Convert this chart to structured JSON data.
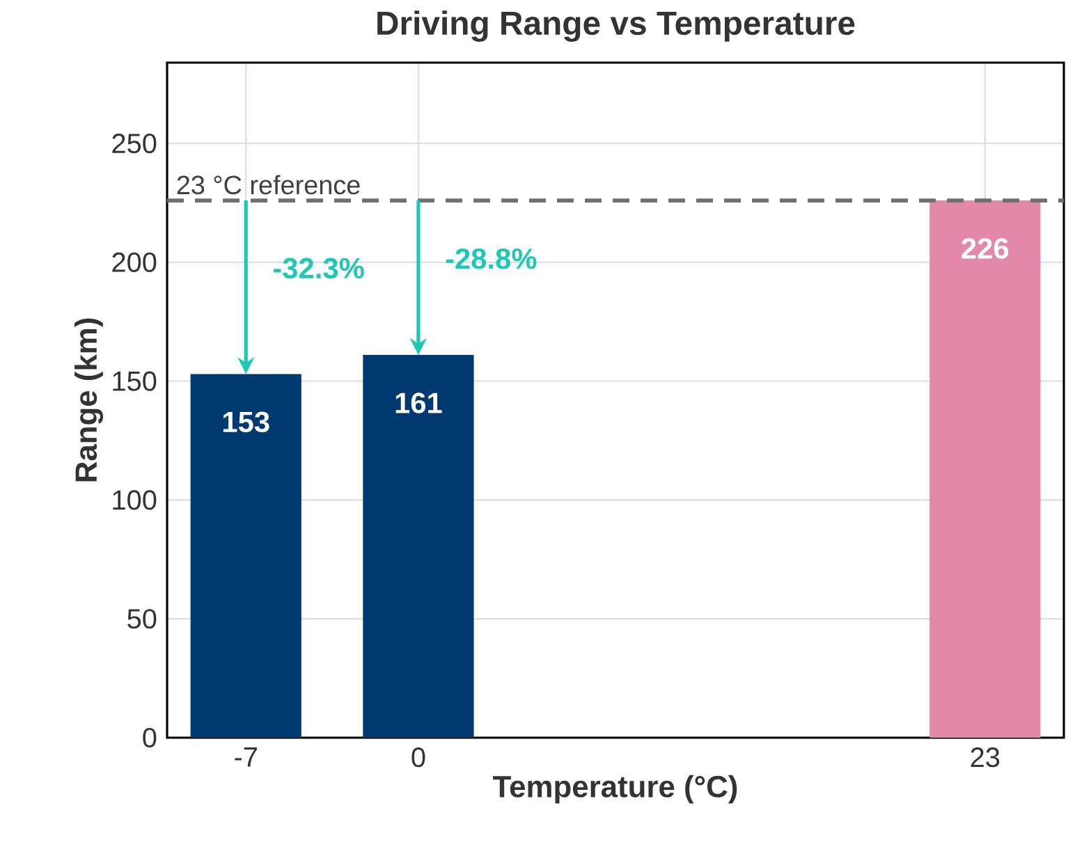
{
  "chart_data": {
    "type": "bar",
    "title": "Driving Range vs Temperature",
    "xlabel": "Temperature (°C)",
    "ylabel": "Range (km)",
    "x": [
      -7,
      0,
      23
    ],
    "values": [
      153,
      161,
      226
    ],
    "colors": [
      "#003a70",
      "#003a70",
      "#e289ab"
    ],
    "xlim": [
      -10.2,
      26.2
    ],
    "xticks": [
      -7,
      0,
      23
    ],
    "ylim": [
      0,
      284
    ],
    "yticks": [
      0,
      50,
      100,
      150,
      200,
      250
    ],
    "grid": true,
    "data_labels": true,
    "ref_lines": [
      {
        "axis": "y",
        "value": 226,
        "label": "23 °C reference",
        "color": "#707070",
        "line_style": "dashed"
      }
    ],
    "annotations": [
      "-32.3%",
      "-28.8%"
    ]
  }
}
